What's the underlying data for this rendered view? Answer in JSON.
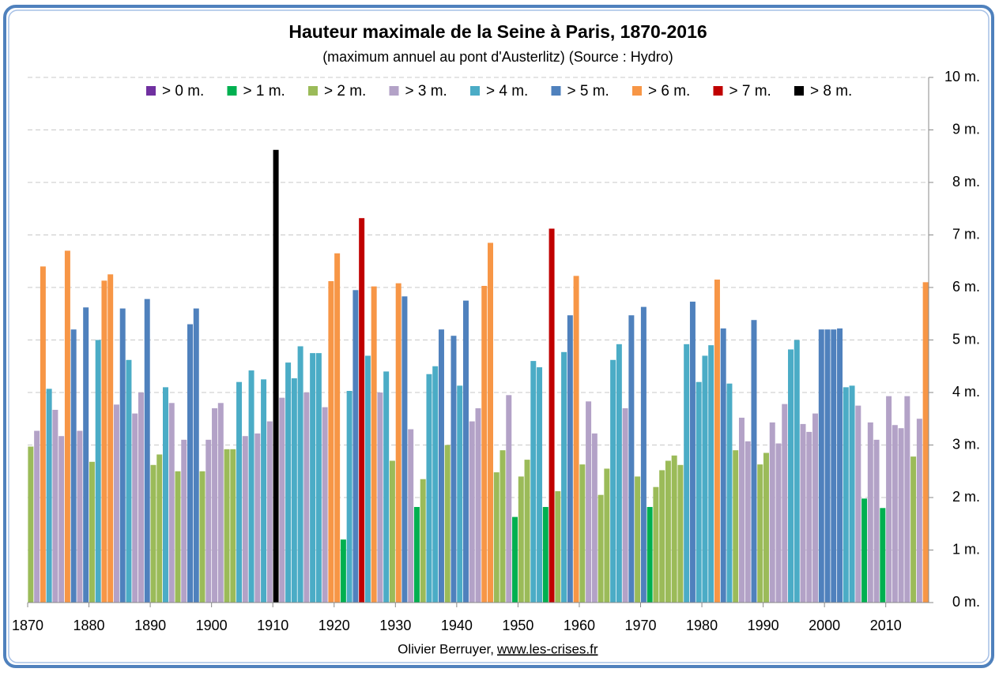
{
  "chart_data": {
    "type": "bar",
    "title": "Hauteur maximale de la Seine à Paris, 1870-2016",
    "subtitle": "(maximum annuel au pont d'Austerlitz) (Source : Hydro)",
    "author": "Olivier Berruyer,",
    "link": "www.les-crises.fr",
    "x": [
      1870,
      1871,
      1872,
      1873,
      1874,
      1875,
      1876,
      1877,
      1878,
      1879,
      1880,
      1881,
      1882,
      1883,
      1884,
      1885,
      1886,
      1887,
      1888,
      1889,
      1890,
      1891,
      1892,
      1893,
      1894,
      1895,
      1896,
      1897,
      1898,
      1899,
      1900,
      1901,
      1902,
      1903,
      1904,
      1905,
      1906,
      1907,
      1908,
      1909,
      1910,
      1911,
      1912,
      1913,
      1914,
      1915,
      1916,
      1917,
      1918,
      1919,
      1920,
      1921,
      1922,
      1923,
      1924,
      1925,
      1926,
      1927,
      1928,
      1929,
      1930,
      1931,
      1932,
      1933,
      1934,
      1935,
      1936,
      1937,
      1938,
      1939,
      1940,
      1941,
      1942,
      1943,
      1944,
      1945,
      1946,
      1947,
      1948,
      1949,
      1950,
      1951,
      1952,
      1953,
      1954,
      1955,
      1956,
      1957,
      1958,
      1959,
      1960,
      1961,
      1962,
      1963,
      1964,
      1965,
      1966,
      1967,
      1968,
      1969,
      1970,
      1971,
      1972,
      1973,
      1974,
      1975,
      1976,
      1977,
      1978,
      1979,
      1980,
      1981,
      1982,
      1983,
      1984,
      1985,
      1986,
      1987,
      1988,
      1989,
      1990,
      1991,
      1992,
      1993,
      1994,
      1995,
      1996,
      1997,
      1998,
      1999,
      2000,
      2001,
      2002,
      2003,
      2004,
      2005,
      2006,
      2007,
      2008,
      2009,
      2010,
      2011,
      2012,
      2013,
      2014,
      2015,
      2016
    ],
    "values": [
      2.97,
      3.27,
      6.4,
      4.07,
      3.67,
      3.17,
      6.7,
      5.2,
      3.27,
      5.62,
      2.68,
      5.0,
      6.13,
      6.25,
      3.77,
      5.6,
      4.62,
      3.6,
      4.0,
      5.78,
      2.62,
      2.82,
      4.1,
      3.8,
      2.5,
      3.1,
      5.3,
      5.6,
      2.5,
      3.1,
      3.7,
      3.8,
      2.92,
      2.92,
      4.2,
      3.17,
      4.42,
      3.22,
      4.25,
      3.45,
      8.62,
      3.9,
      4.57,
      4.27,
      4.88,
      4.0,
      4.75,
      4.75,
      3.72,
      6.12,
      6.65,
      1.2,
      4.03,
      5.95,
      7.32,
      4.7,
      6.02,
      4.0,
      4.4,
      2.7,
      6.08,
      5.83,
      3.3,
      1.82,
      2.35,
      4.35,
      4.5,
      5.2,
      3.0,
      5.08,
      4.13,
      5.75,
      3.45,
      3.7,
      6.03,
      6.85,
      2.48,
      2.9,
      3.95,
      1.63,
      2.4,
      2.72,
      4.6,
      4.48,
      1.82,
      7.12,
      2.12,
      4.77,
      5.47,
      6.22,
      2.63,
      3.83,
      3.22,
      2.05,
      2.55,
      4.62,
      4.92,
      3.7,
      5.47,
      2.4,
      5.63,
      1.82,
      2.2,
      2.52,
      2.7,
      2.8,
      2.62,
      4.92,
      5.73,
      4.2,
      4.7,
      4.9,
      6.15,
      5.22,
      4.17,
      2.9,
      3.52,
      3.07,
      5.38,
      2.63,
      2.85,
      3.43,
      3.03,
      3.78,
      4.82,
      5.0,
      3.4,
      3.25,
      3.6,
      5.2,
      5.2,
      5.2,
      5.22,
      4.1,
      4.13,
      3.75,
      1.98,
      3.43,
      3.1,
      1.8,
      3.93,
      3.38,
      3.32,
      3.93,
      2.78,
      3.5,
      6.1
    ],
    "classes": [
      {
        "name": "> 0 m.",
        "color": "#7030a0",
        "min": 0
      },
      {
        "name": "> 1 m.",
        "color": "#00b050",
        "min": 1
      },
      {
        "name": "> 2 m.",
        "color": "#9bbb59",
        "min": 2
      },
      {
        "name": "> 3 m.",
        "color": "#b3a2c7",
        "min": 3
      },
      {
        "name": "> 4 m.",
        "color": "#4bacc6",
        "min": 4
      },
      {
        "name": "> 5 m.",
        "color": "#4f81bd",
        "min": 5
      },
      {
        "name": "> 6 m.",
        "color": "#f79646",
        "min": 6
      },
      {
        "name": "> 7 m.",
        "color": "#c00000",
        "min": 7
      },
      {
        "name": "> 8 m.",
        "color": "#000000",
        "min": 8
      }
    ],
    "xlim": [
      1870,
      2017
    ],
    "xticks": [
      1870,
      1880,
      1890,
      1900,
      1910,
      1920,
      1930,
      1940,
      1950,
      1960,
      1970,
      1980,
      1990,
      2000,
      2010
    ],
    "ylim": [
      0,
      10
    ],
    "yticks": [
      {
        "value": 0,
        "label": "0 m."
      },
      {
        "value": 1,
        "label": "1 m."
      },
      {
        "value": 2,
        "label": "2 m."
      },
      {
        "value": 3,
        "label": "3 m."
      },
      {
        "value": 4,
        "label": "4 m."
      },
      {
        "value": 5,
        "label": "5 m."
      },
      {
        "value": 6,
        "label": "6 m."
      },
      {
        "value": 7,
        "label": "7 m."
      },
      {
        "value": 8,
        "label": "8 m."
      },
      {
        "value": 9,
        "label": "9 m."
      },
      {
        "value": 10,
        "label": "10 m."
      }
    ],
    "y_axis_side": "right",
    "grid": true,
    "legend_position": "top"
  }
}
